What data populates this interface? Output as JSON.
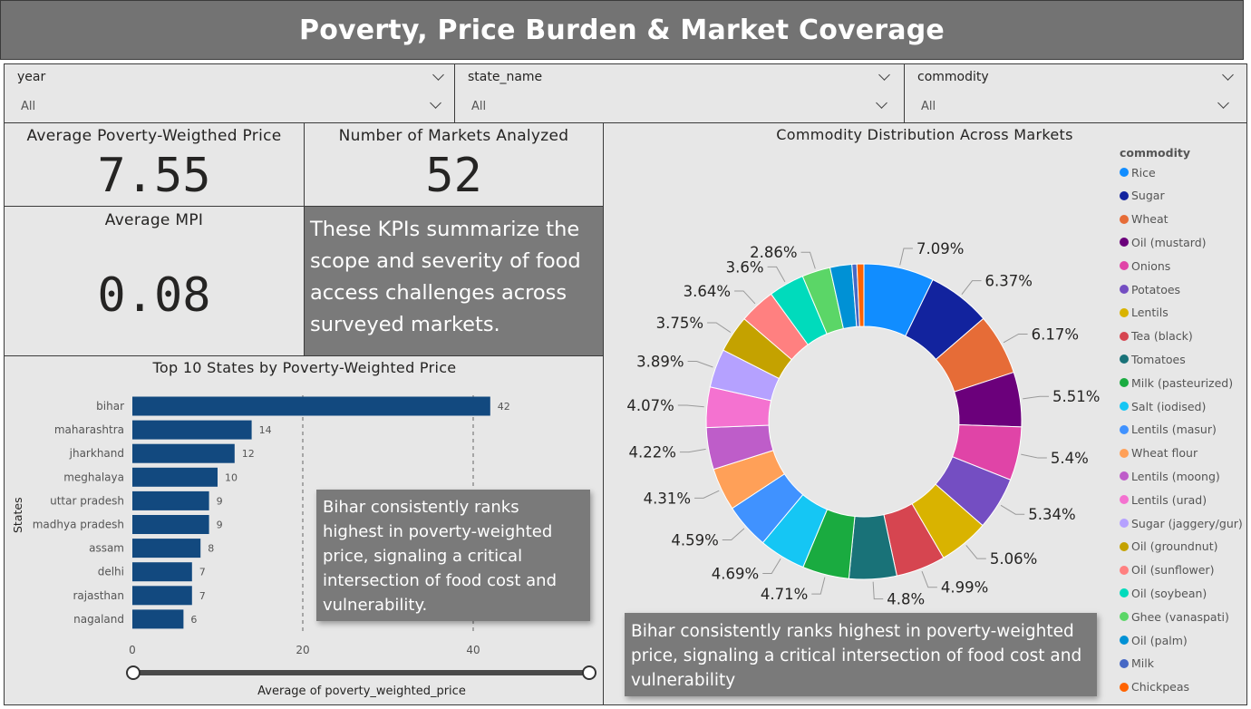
{
  "header": {
    "title": "Poverty, Price Burden & Market Coverage"
  },
  "filters": [
    {
      "label": "year",
      "value": "All"
    },
    {
      "label": "state_name",
      "value": "All"
    },
    {
      "label": "commodity",
      "value": "All"
    }
  ],
  "kpis": {
    "avg_price": {
      "title": "Average Poverty-Weigthed Price",
      "value": "7.55"
    },
    "markets": {
      "title": "Number of Markets Analyzed",
      "value": "52"
    },
    "mpi": {
      "title": "Average MPI",
      "value": "0.08"
    }
  },
  "notes": {
    "kpi_summary": "These KPIs summarize the scope and severity of food access challenges across surveyed markets.",
    "bar_insight": "Bihar consistently ranks highest in poverty-weighted price, signaling a critical intersection of food cost and vulnerability.",
    "donut_insight": "Bihar consistently ranks highest in poverty-weighted price, signaling a critical intersection of food cost and vulnerability"
  },
  "chart_data": [
    {
      "type": "bar",
      "orientation": "horizontal",
      "title": "Top 10 States by Poverty-Weighted Price",
      "xlabel": "Average of poverty_weighted_price",
      "ylabel": "States",
      "categories": [
        "bihar",
        "maharashtra",
        "jharkhand",
        "meghalaya",
        "uttar pradesh",
        "madhya pradesh",
        "assam",
        "delhi",
        "rajasthan",
        "nagaland"
      ],
      "values": [
        42,
        14,
        12,
        10,
        9,
        9,
        8,
        7,
        7,
        6
      ],
      "data_labels": [
        "42",
        "14",
        "12",
        "10",
        "9",
        "9",
        "8",
        "7",
        "7",
        "6"
      ],
      "xticks": [
        "0",
        "20",
        "40"
      ],
      "xlim": [
        0,
        42
      ],
      "gridlines": "dashed-vertical",
      "color": "#12497f"
    },
    {
      "type": "pie",
      "variant": "donut",
      "title": "Commodity Distribution Across Markets",
      "legend_title": "commodity",
      "legend_position": "right",
      "slices": [
        {
          "name": "Rice",
          "value": 7.09,
          "label": "7.09%",
          "color": "#118dff"
        },
        {
          "name": "Sugar",
          "value": 6.37,
          "label": "6.37%",
          "color": "#12239e"
        },
        {
          "name": "Wheat",
          "value": 6.17,
          "label": "6.17%",
          "color": "#e66c37"
        },
        {
          "name": "Oil (mustard)",
          "value": 5.51,
          "label": "5.51%",
          "color": "#6b007b"
        },
        {
          "name": "Onions",
          "value": 5.4,
          "label": "5.4%",
          "color": "#e044a7"
        },
        {
          "name": "Potatoes",
          "value": 5.34,
          "label": "5.34%",
          "color": "#744ec2"
        },
        {
          "name": "Lentils",
          "value": 5.06,
          "label": "5.06%",
          "color": "#d9b300"
        },
        {
          "name": "Tea (black)",
          "value": 4.99,
          "label": "4.99%",
          "color": "#d64550"
        },
        {
          "name": "Tomatoes",
          "value": 4.8,
          "label": "4.8%",
          "color": "#197278"
        },
        {
          "name": "Milk (pasteurized)",
          "value": 4.71,
          "label": "4.71%",
          "color": "#1aab40"
        },
        {
          "name": "Salt (iodised)",
          "value": 4.69,
          "label": "4.69%",
          "color": "#15c6f4"
        },
        {
          "name": "Lentils (masur)",
          "value": 4.59,
          "label": "4.59%",
          "color": "#4092ff"
        },
        {
          "name": "Wheat flour",
          "value": 4.31,
          "label": "4.31%",
          "color": "#ffa058"
        },
        {
          "name": "Lentils (moong)",
          "value": 4.22,
          "label": "4.22%",
          "color": "#be5dc9"
        },
        {
          "name": "Lentils (urad)",
          "value": 4.07,
          "label": "4.07%",
          "color": "#f472d0"
        },
        {
          "name": "Sugar (jaggery/gur)",
          "value": 3.89,
          "label": "3.89%",
          "color": "#b5a1ff"
        },
        {
          "name": "Oil (groundnut)",
          "value": 3.75,
          "label": "3.75%",
          "color": "#c4a200"
        },
        {
          "name": "Oil (sunflower)",
          "value": 3.64,
          "label": "3.64%",
          "color": "#ff8080"
        },
        {
          "name": "Oil (soybean)",
          "value": 3.6,
          "label": "3.6%",
          "color": "#00dbbc"
        },
        {
          "name": "Ghee (vanaspati)",
          "value": 2.86,
          "label": "2.86%",
          "color": "#5bd667"
        },
        {
          "name": "Oil (palm)",
          "value": 2.2,
          "label": "",
          "color": "#0091d5"
        },
        {
          "name": "Milk",
          "value": 0.5,
          "label": "",
          "color": "#4668c5"
        },
        {
          "name": "Chickpeas",
          "value": 0.7,
          "label": "",
          "color": "#ff6300"
        }
      ]
    }
  ]
}
